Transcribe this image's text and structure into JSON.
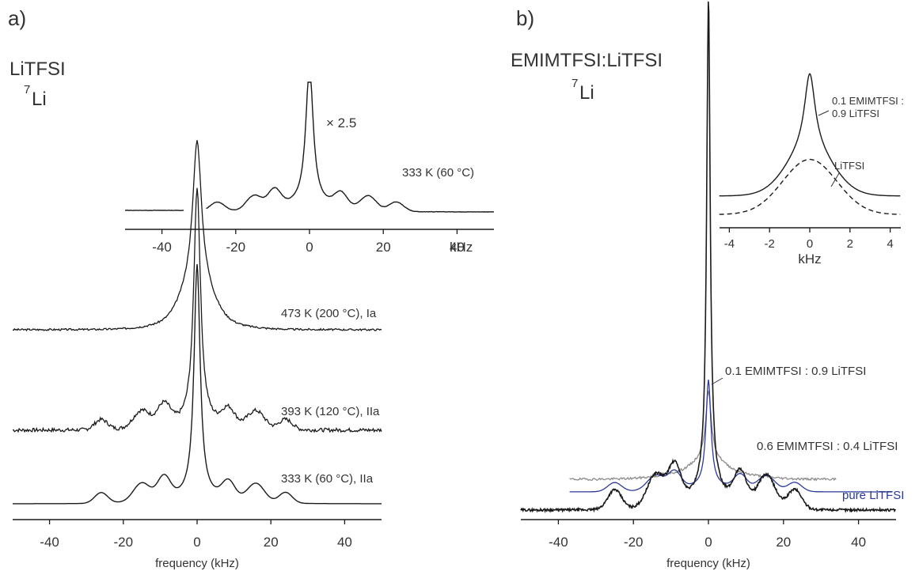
{
  "panels": {
    "a": {
      "label": "a)",
      "compound": "LiTFSI",
      "nucleus_sup": "7",
      "nucleus": "Li",
      "xlabel": "frequency (kHz)",
      "inset_scale": "× 2.5",
      "inset_unit": "kHz"
    },
    "b": {
      "label": "b)",
      "compound": "EMIMTFSI:LiTFSI",
      "nucleus_sup": "7",
      "nucleus": "Li",
      "xlabel": "frequency (kHz)",
      "inset_label_1": "0.1 EMIMTFSI :",
      "inset_label_2": "0.9 LiTFSI",
      "inset_label_3": "LiTFSI",
      "inset_xlabel": "kHz"
    }
  },
  "chart_data": [
    {
      "type": "line",
      "panel": "a",
      "xlabel": "frequency (kHz)",
      "xlim": [
        -50,
        50
      ],
      "xticks": [
        -40,
        -20,
        0,
        20,
        40
      ],
      "grid": false,
      "series": [
        {
          "name": "473 K (200 °C), Ia",
          "x": [
            -50,
            -20,
            -10,
            -6,
            -4,
            -2,
            0,
            2,
            4,
            6,
            10,
            20,
            50
          ],
          "y": [
            0,
            0.01,
            0.06,
            0.2,
            0.32,
            0.6,
            1.0,
            0.6,
            0.32,
            0.2,
            0.06,
            0.01,
            0
          ]
        },
        {
          "name": "393 K (120 °C), IIa",
          "x": [
            -50,
            -26,
            -15,
            -9,
            -3,
            0,
            3,
            9,
            15,
            26,
            50
          ],
          "y": [
            0,
            0.04,
            0.08,
            0.09,
            0.1,
            1.0,
            0.1,
            0.09,
            0.08,
            0.04,
            0
          ]
        },
        {
          "name": "333 K (60 °C), IIa",
          "x": [
            -50,
            -26,
            -15,
            -9,
            -3,
            0,
            3,
            9,
            15,
            26,
            50
          ],
          "y": [
            0,
            0.04,
            0.09,
            0.11,
            0.1,
            1.0,
            0.1,
            0.11,
            0.09,
            0.04,
            0
          ]
        }
      ],
      "inset": {
        "series_name": "333 K (60 °C)",
        "scale": "× 2.5",
        "xticks": [
          -40,
          -20,
          0,
          20,
          40
        ],
        "xlabel": "kHz"
      }
    },
    {
      "type": "line",
      "panel": "b",
      "xlabel": "frequency (kHz)",
      "xlim": [
        -50,
        50
      ],
      "xticks": [
        -40,
        -20,
        0,
        20,
        40
      ],
      "grid": false,
      "series": [
        {
          "name": "0.1 EMIMTFSI : 0.9 LiTFSI",
          "x": [
            -50,
            -25,
            -15,
            -9,
            -2,
            0,
            2,
            9,
            15,
            25,
            50
          ],
          "y": [
            0,
            0.03,
            0.07,
            0.08,
            0.15,
            1.0,
            0.15,
            0.08,
            0.07,
            0.03,
            0
          ]
        },
        {
          "name": "0.6 EMIMTFSI : 0.4 LiTFSI",
          "x": [
            -37,
            -20,
            -10,
            -2,
            0,
            2,
            10,
            20,
            34
          ],
          "y": [
            0,
            0.03,
            0.06,
            0.15,
            1.0,
            0.15,
            0.06,
            0.03,
            0
          ]
        },
        {
          "name": "pure LiTFSI",
          "x": [
            -37,
            -25,
            -15,
            -9,
            -2,
            0,
            2,
            9,
            15,
            25,
            50
          ],
          "y": [
            0,
            0.03,
            0.07,
            0.08,
            0.14,
            1.0,
            0.14,
            0.08,
            0.07,
            0.03,
            0
          ]
        }
      ],
      "inset": {
        "xlim": [
          -4.5,
          4.5
        ],
        "xticks": [
          -4,
          -2,
          0,
          2,
          4
        ],
        "xlabel": "kHz",
        "series": [
          {
            "name": "0.1 EMIMTFSI : 0.9 LiTFSI",
            "style": "solid"
          },
          {
            "name": "LiTFSI",
            "style": "dashed"
          }
        ]
      }
    }
  ],
  "colors": {
    "trace": "#1a1a1a",
    "trace_gray": "#8c8c8c",
    "trace_blue": "#2b3a9a",
    "text": "#333333"
  }
}
